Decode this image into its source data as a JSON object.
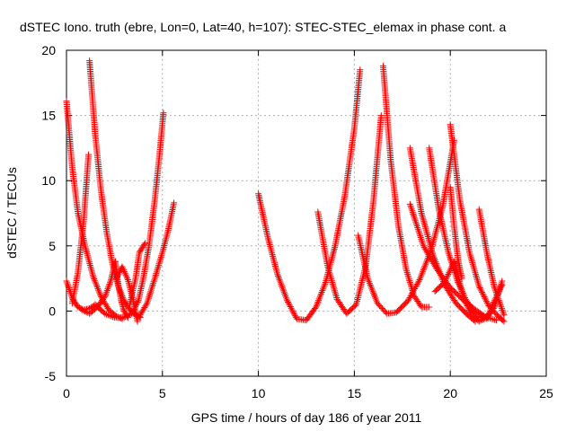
{
  "chart_data": {
    "type": "scatter",
    "title": "dSTEC Iono. truth (ebre, Lon=0, Lat=40, h=107): STEC-STEC_elemax in phase cont. a",
    "xlabel": "GPS time / hours of day 186 of year 2011",
    "ylabel": "dSTEC  / TECUs",
    "xlim": [
      0,
      25
    ],
    "ylim": [
      -5,
      20
    ],
    "x_ticks": [
      "0",
      "5",
      "10",
      "15",
      "20",
      "25"
    ],
    "y_ticks": [
      "-5",
      "0",
      "5",
      "10",
      "15",
      "20"
    ],
    "grid": true,
    "legend": "none",
    "marker": "plus",
    "color": "#ff0000",
    "series": [
      {
        "x": [
          0.0,
          0.3,
          0.6,
          1.0,
          1.4,
          1.8,
          2.2,
          2.6,
          2.9
        ],
        "y": [
          16.1,
          11.0,
          7.5,
          4.8,
          2.6,
          1.1,
          0.1,
          -0.4,
          -0.6
        ]
      },
      {
        "x": [
          0.0,
          0.3,
          0.6,
          0.9,
          1.2,
          1.5
        ],
        "y": [
          2.3,
          1.0,
          0.3,
          0.1,
          0.2,
          0.5
        ]
      },
      {
        "x": [
          1.2,
          1.5,
          1.8,
          2.1,
          2.4,
          2.7,
          3.0,
          3.3,
          3.6,
          3.85
        ],
        "y": [
          19.2,
          13.5,
          9.2,
          6.0,
          3.6,
          1.9,
          0.8,
          0.1,
          -0.3,
          -0.5
        ]
      },
      {
        "x": [
          1.5,
          2.0,
          2.5,
          3.0,
          3.4,
          3.75,
          4.0,
          4.3,
          4.6,
          4.85,
          5.05
        ],
        "y": [
          0.5,
          -0.2,
          -0.5,
          -0.5,
          -0.2,
          0.8,
          2.5,
          5.0,
          8.5,
          12.0,
          15.2
        ]
      },
      {
        "x": [
          0.3,
          0.6,
          0.9,
          1.15
        ],
        "y": [
          0.6,
          3.0,
          7.0,
          12.0
        ]
      },
      {
        "x": [
          0.8,
          1.2,
          1.6,
          2.0,
          2.3,
          2.55
        ],
        "y": [
          0.1,
          -0.2,
          0.3,
          1.1,
          2.3,
          3.8
        ]
      },
      {
        "x": [
          2.55,
          2.7,
          2.85,
          3.0,
          3.2
        ],
        "y": [
          3.8,
          2.0,
          0.8,
          0.0,
          -0.5
        ]
      },
      {
        "x": [
          2.6,
          2.9,
          3.2,
          3.45,
          3.7
        ],
        "y": [
          2.5,
          3.4,
          2.4,
          1.0,
          -0.8
        ]
      },
      {
        "x": [
          3.3,
          3.6,
          3.8,
          4.1
        ],
        "y": [
          0.5,
          2.5,
          4.5,
          5.2
        ]
      },
      {
        "x": [
          3.8,
          4.2,
          4.6,
          5.0,
          5.3,
          5.6
        ],
        "y": [
          -0.4,
          0.6,
          2.5,
          4.5,
          6.2,
          8.3
        ]
      },
      {
        "x": [
          10.0,
          10.5,
          11.0,
          11.5,
          12.0,
          12.5,
          13.0,
          13.5,
          14.0,
          14.5,
          15.0,
          15.3
        ],
        "y": [
          9.0,
          5.6,
          2.8,
          0.8,
          -0.6,
          -0.7,
          0.3,
          2.2,
          5.0,
          8.8,
          14.0,
          18.5
        ]
      },
      {
        "x": [
          13.1,
          13.6,
          14.1,
          14.6,
          15.1,
          15.6,
          16.0,
          16.4
        ],
        "y": [
          7.6,
          3.5,
          0.9,
          -0.2,
          0.5,
          3.5,
          8.5,
          15.0
        ]
      },
      {
        "x": [
          15.2,
          15.7,
          16.2,
          16.7,
          17.2,
          17.8,
          18.4,
          19.0,
          19.6,
          20.2
        ],
        "y": [
          5.8,
          2.5,
          0.6,
          -0.2,
          -0.1,
          0.8,
          2.4,
          4.7,
          8.0,
          13.1
        ]
      },
      {
        "x": [
          16.5,
          16.9,
          17.3,
          17.7,
          18.1,
          18.5,
          18.9
        ],
        "y": [
          18.8,
          11.5,
          6.5,
          3.2,
          1.2,
          0.3,
          0.3
        ]
      },
      {
        "x": [
          17.9,
          18.5,
          19.1,
          19.7,
          20.3,
          20.9,
          21.3
        ],
        "y": [
          12.5,
          7.5,
          4.3,
          2.0,
          0.6,
          -0.3,
          -0.8
        ]
      },
      {
        "x": [
          18.9,
          19.4,
          19.9,
          20.4,
          20.8,
          21.2
        ],
        "y": [
          12.5,
          7.8,
          4.5,
          2.2,
          0.9,
          0.0
        ]
      },
      {
        "x": [
          17.9,
          18.6,
          19.3,
          20.0,
          20.7,
          21.4,
          21.9,
          22.4
        ],
        "y": [
          8.2,
          5.0,
          3.2,
          1.8,
          0.8,
          0.0,
          -0.5,
          -0.7
        ]
      },
      {
        "x": [
          20.0,
          20.5,
          21.0,
          21.5,
          22.0,
          22.5,
          22.8
        ],
        "y": [
          14.3,
          8.5,
          4.5,
          1.9,
          0.4,
          -0.4,
          -0.8
        ]
      },
      {
        "x": [
          21.5,
          21.9,
          22.3,
          22.8
        ],
        "y": [
          7.8,
          4.5,
          1.8,
          -0.3
        ]
      },
      {
        "x": [
          19.2,
          19.7,
          20.2,
          20.7,
          21.1,
          21.5,
          21.9,
          22.3,
          22.7
        ],
        "y": [
          1.5,
          2.2,
          3.8,
          1.0,
          -0.3,
          -0.8,
          -0.5,
          0.3,
          2.3
        ]
      },
      {
        "x": [
          20.9,
          21.4,
          21.9,
          22.3,
          22.7
        ],
        "y": [
          0.5,
          -0.4,
          -0.6,
          0.8,
          2.0
        ]
      },
      {
        "x": [
          20.0,
          20.2,
          20.4,
          20.6
        ],
        "y": [
          9.5,
          6.5,
          4.0,
          2.5
        ]
      }
    ]
  }
}
